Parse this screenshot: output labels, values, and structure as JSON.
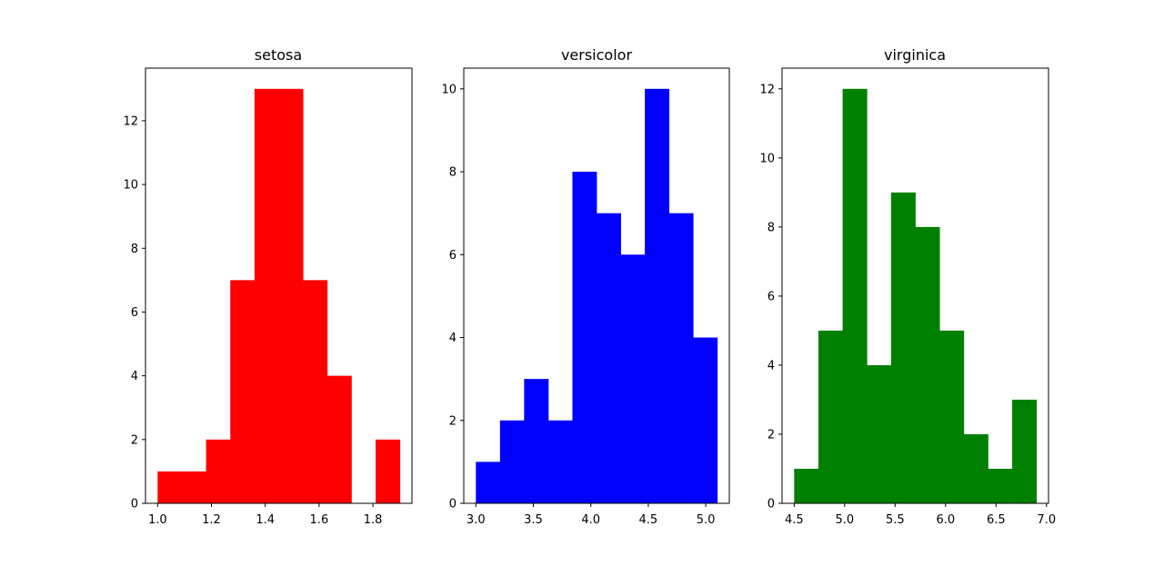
{
  "chart_data": [
    {
      "type": "bar",
      "title": "setosa",
      "color": "#ff0000",
      "bin_edges": [
        1.0,
        1.09,
        1.18,
        1.27,
        1.36,
        1.45,
        1.54,
        1.63,
        1.72,
        1.81,
        1.9
      ],
      "values": [
        1,
        1,
        2,
        7,
        13,
        13,
        7,
        4,
        0,
        2
      ],
      "xlim": [
        0.955,
        1.945
      ],
      "ylim": [
        0,
        13.65
      ],
      "xticks": [
        "1.0",
        "1.2",
        "1.4",
        "1.6",
        "1.8"
      ],
      "xtick_values": [
        1.0,
        1.2,
        1.4,
        1.6,
        1.8
      ],
      "yticks": [
        "0",
        "2",
        "4",
        "6",
        "8",
        "10",
        "12"
      ],
      "ytick_values": [
        0,
        2,
        4,
        6,
        8,
        10,
        12
      ]
    },
    {
      "type": "bar",
      "title": "versicolor",
      "color": "#0000ff",
      "bin_edges": [
        3.0,
        3.21,
        3.42,
        3.63,
        3.84,
        4.05,
        4.26,
        4.47,
        4.68,
        4.89,
        5.1
      ],
      "values": [
        1,
        2,
        3,
        2,
        8,
        7,
        6,
        10,
        7,
        4
      ],
      "xlim": [
        2.895,
        5.205
      ],
      "ylim": [
        0,
        10.5
      ],
      "xticks": [
        "3.0",
        "3.5",
        "4.0",
        "4.5",
        "5.0"
      ],
      "xtick_values": [
        3.0,
        3.5,
        4.0,
        4.5,
        5.0
      ],
      "yticks": [
        "0",
        "2",
        "4",
        "6",
        "8",
        "10"
      ],
      "ytick_values": [
        0,
        2,
        4,
        6,
        8,
        10
      ]
    },
    {
      "type": "bar",
      "title": "virginica",
      "color": "#008000",
      "bin_edges": [
        4.5,
        4.74,
        4.98,
        5.22,
        5.46,
        5.7,
        5.94,
        6.18,
        6.42,
        6.66,
        6.9
      ],
      "values": [
        1,
        5,
        12,
        4,
        9,
        8,
        5,
        2,
        1,
        3
      ],
      "xlim": [
        4.38,
        7.02
      ],
      "ylim": [
        0,
        12.6
      ],
      "xticks": [
        "4.5",
        "5.0",
        "5.5",
        "6.0",
        "6.5",
        "7.0"
      ],
      "xtick_values": [
        4.5,
        5.0,
        5.5,
        6.0,
        6.5,
        7.0
      ],
      "yticks": [
        "0",
        "2",
        "4",
        "6",
        "8",
        "10",
        "12"
      ],
      "ytick_values": [
        0,
        2,
        4,
        6,
        8,
        10,
        12
      ]
    }
  ]
}
